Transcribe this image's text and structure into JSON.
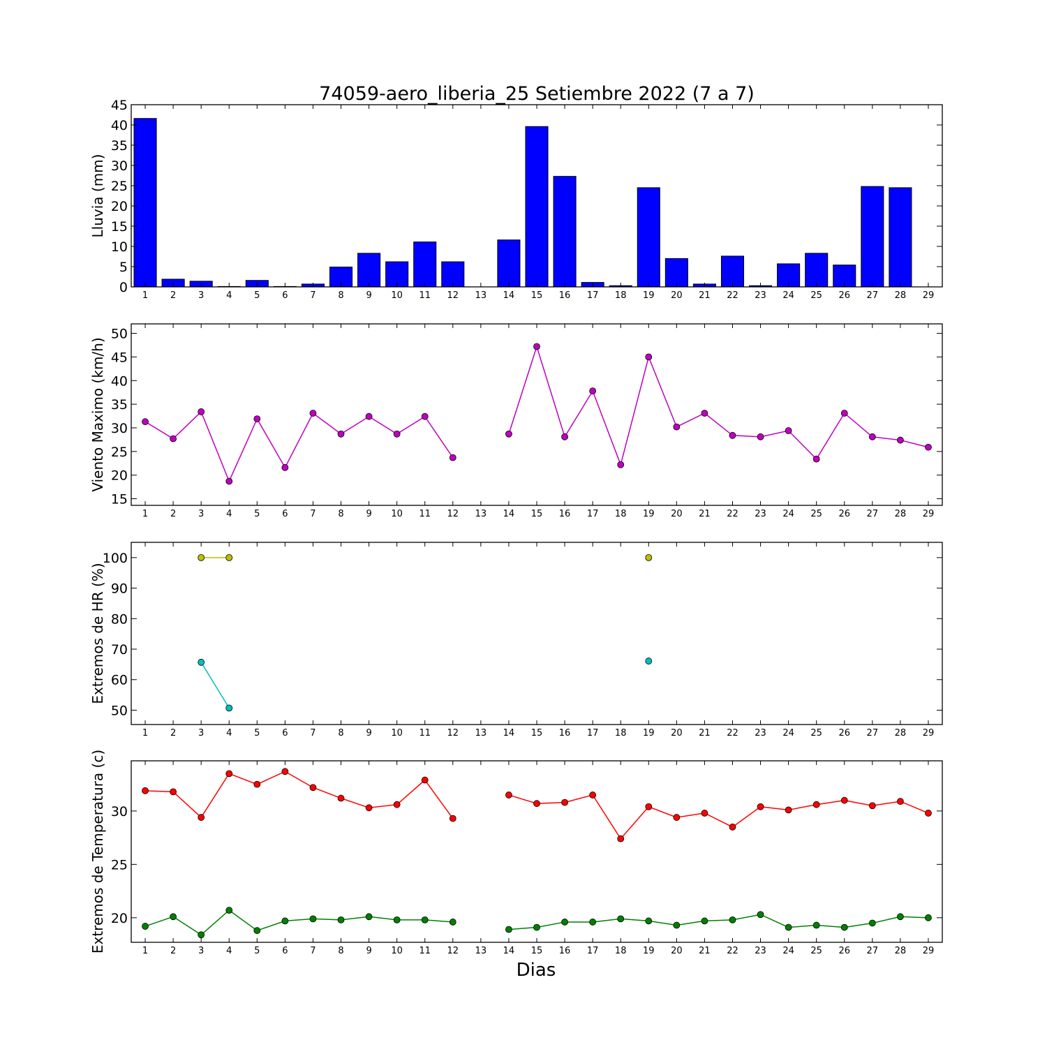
{
  "figure": {
    "title": "74059-aero_liberia_25 Setiembre 2022  (7 a 7)",
    "xlabel": "Dias"
  },
  "chart_data": [
    {
      "type": "bar",
      "ylabel": "Lluvia (mm)",
      "categories": [
        1,
        2,
        3,
        4,
        5,
        6,
        7,
        8,
        9,
        10,
        11,
        12,
        13,
        14,
        15,
        16,
        17,
        18,
        19,
        20,
        21,
        22,
        23,
        24,
        25,
        26,
        27,
        28,
        29
      ],
      "values": [
        41.6,
        1.9,
        1.4,
        0.1,
        1.6,
        0.1,
        0.7,
        4.9,
        8.3,
        6.2,
        11.1,
        6.2,
        0,
        11.6,
        39.6,
        27.3,
        1.1,
        0.3,
        24.5,
        7.0,
        0.7,
        7.6,
        0.3,
        5.7,
        8.3,
        5.4,
        24.8,
        24.5,
        0
      ],
      "ylim": [
        0,
        45
      ],
      "yticks": [
        0,
        5,
        10,
        15,
        20,
        25,
        30,
        35,
        40,
        45
      ],
      "xlim": [
        0.5,
        29.5
      ],
      "grid": false,
      "colors": {
        "bar": "#0000ff"
      }
    },
    {
      "type": "line",
      "ylabel": "Viento Maximo (km/h)",
      "x": [
        1,
        2,
        3,
        4,
        5,
        6,
        7,
        8,
        9,
        10,
        11,
        12,
        13,
        14,
        15,
        16,
        17,
        18,
        19,
        20,
        21,
        22,
        23,
        24,
        25,
        26,
        27,
        28,
        29
      ],
      "series": [
        {
          "values": [
            31.3,
            27.7,
            33.4,
            18.7,
            31.9,
            21.6,
            33.1,
            28.7,
            32.4,
            28.7,
            32.4,
            23.7,
            null,
            28.7,
            47.2,
            28.1,
            37.8,
            22.2,
            45.0,
            30.2,
            33.1,
            28.4,
            28.1,
            29.4,
            23.4,
            33.1,
            28.1,
            27.4,
            25.9
          ],
          "color": "#bf00bf"
        }
      ],
      "ylim": [
        13.6,
        52
      ],
      "yticks": [
        15,
        20,
        25,
        30,
        35,
        40,
        45,
        50
      ],
      "xlim": [
        0.5,
        29.5
      ],
      "grid": false
    },
    {
      "type": "line",
      "ylabel": "Extremos de HR (%)",
      "x": [
        1,
        2,
        3,
        4,
        5,
        6,
        7,
        8,
        9,
        10,
        11,
        12,
        13,
        14,
        15,
        16,
        17,
        18,
        19,
        20,
        21,
        22,
        23,
        24,
        25,
        26,
        27,
        28,
        29
      ],
      "series": [
        {
          "values": [
            null,
            null,
            100,
            100,
            null,
            null,
            null,
            null,
            null,
            null,
            null,
            null,
            null,
            null,
            null,
            null,
            null,
            null,
            100,
            null,
            null,
            null,
            null,
            null,
            null,
            null,
            null,
            null,
            null
          ],
          "color": "#bfbf00"
        },
        {
          "values": [
            null,
            null,
            65.7,
            50.7,
            null,
            null,
            null,
            null,
            null,
            null,
            null,
            null,
            null,
            null,
            null,
            null,
            null,
            null,
            66.1,
            null,
            null,
            null,
            null,
            null,
            null,
            null,
            null,
            null,
            null
          ],
          "color": "#00bfbf"
        }
      ],
      "ylim": [
        45.3,
        105
      ],
      "yticks": [
        50,
        60,
        70,
        80,
        90,
        100
      ],
      "xlim": [
        0.5,
        29.5
      ],
      "grid": false
    },
    {
      "type": "line",
      "ylabel": "Extremos de Temperatura (c)",
      "xlabel": "Dias",
      "x": [
        1,
        2,
        3,
        4,
        5,
        6,
        7,
        8,
        9,
        10,
        11,
        12,
        13,
        14,
        15,
        16,
        17,
        18,
        19,
        20,
        21,
        22,
        23,
        24,
        25,
        26,
        27,
        28,
        29
      ],
      "series": [
        {
          "values": [
            31.9,
            31.8,
            29.4,
            33.5,
            32.5,
            33.7,
            32.2,
            31.2,
            30.3,
            30.6,
            32.9,
            29.3,
            null,
            31.5,
            30.7,
            30.8,
            31.5,
            27.4,
            30.4,
            29.4,
            29.8,
            28.5,
            30.4,
            30.1,
            30.6,
            31.0,
            30.5,
            30.9,
            29.8
          ],
          "color": "#ff0000"
        },
        {
          "values": [
            19.2,
            20.1,
            18.4,
            20.7,
            18.8,
            19.7,
            19.9,
            19.8,
            20.1,
            19.8,
            19.8,
            19.6,
            null,
            18.9,
            19.1,
            19.6,
            19.6,
            19.9,
            19.7,
            19.3,
            19.7,
            19.8,
            20.3,
            19.1,
            19.3,
            19.1,
            19.5,
            20.1,
            20.0
          ],
          "color": "#008000"
        }
      ],
      "ylim": [
        17.7,
        34.7
      ],
      "yticks": [
        20,
        25,
        30
      ],
      "xlim": [
        0.5,
        29.5
      ],
      "grid": false
    }
  ]
}
